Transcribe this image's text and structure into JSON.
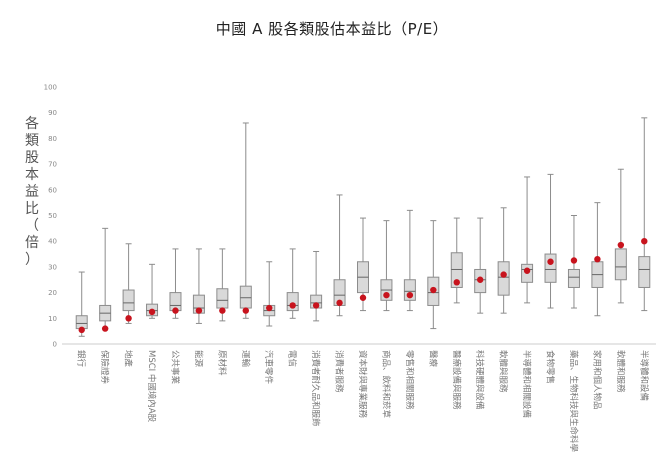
{
  "chart_data": {
    "type": "boxplot",
    "title": "中國 A 股各類股估本益比（P/E）",
    "ylabel": "各類股本益比（倍）",
    "xlabel": "",
    "ylim": [
      0,
      100
    ],
    "yticks": [
      0,
      10,
      20,
      30,
      40,
      50,
      60,
      70,
      80,
      90,
      100
    ],
    "grid": false,
    "legend": "none",
    "colors": {
      "box_fill": "#d9d9d9",
      "box_stroke": "#8c8c8c",
      "whisker": "#8c8c8c",
      "median": "#666666",
      "point": "#c8141e",
      "axis": "#cccccc"
    },
    "series": [
      {
        "category": "銀行",
        "min": 3,
        "q1": 6,
        "median": 8,
        "q3": 11,
        "max": 28,
        "current": 5.5
      },
      {
        "category": "保險證券",
        "min": 6,
        "q1": 9,
        "median": 12,
        "q3": 15,
        "max": 45,
        "current": 6
      },
      {
        "category": "地產",
        "min": 8,
        "q1": 13,
        "median": 16,
        "q3": 21,
        "max": 39,
        "current": 10
      },
      {
        "category": "MSCI 中國境內A股",
        "min": 10,
        "q1": 11,
        "median": 13,
        "q3": 15.5,
        "max": 31,
        "current": 12.5
      },
      {
        "category": "公共事業",
        "min": 10,
        "q1": 13,
        "median": 15,
        "q3": 20,
        "max": 37,
        "current": 13
      },
      {
        "category": "能源",
        "min": 8,
        "q1": 12,
        "median": 14,
        "q3": 19,
        "max": 37,
        "current": 13
      },
      {
        "category": "原材料",
        "min": 9,
        "q1": 14,
        "median": 17,
        "q3": 21.5,
        "max": 37,
        "current": 13
      },
      {
        "category": "運輸",
        "min": 10,
        "q1": 14,
        "median": 18,
        "q3": 22.5,
        "max": 86,
        "current": 13
      },
      {
        "category": "汽車零件",
        "min": 7,
        "q1": 11,
        "median": 13,
        "q3": 15,
        "max": 32,
        "current": 14
      },
      {
        "category": "電信",
        "min": 10,
        "q1": 13,
        "median": 15,
        "q3": 20,
        "max": 37,
        "current": 15
      },
      {
        "category": "消費者耐久品和服飾",
        "min": 9,
        "q1": 14,
        "median": 16,
        "q3": 19,
        "max": 36,
        "current": 15
      },
      {
        "category": "消費者服務",
        "min": 11,
        "q1": 15,
        "median": 19,
        "q3": 25,
        "max": 58,
        "current": 16
      },
      {
        "category": "資本財與專業服務",
        "min": 13,
        "q1": 20,
        "median": 26,
        "q3": 32,
        "max": 49,
        "current": 18
      },
      {
        "category": "商品、飲料和菸草",
        "min": 13,
        "q1": 17,
        "median": 21,
        "q3": 25,
        "max": 48,
        "current": 19
      },
      {
        "category": "零售和相關服務",
        "min": 13,
        "q1": 17,
        "median": 20.5,
        "q3": 25,
        "max": 52,
        "current": 19
      },
      {
        "category": "醫療",
        "min": 6,
        "q1": 15,
        "median": 20,
        "q3": 26,
        "max": 48,
        "current": 21
      },
      {
        "category": "醫療設備與服務",
        "min": 16,
        "q1": 22,
        "median": 29,
        "q3": 35.5,
        "max": 49,
        "current": 24
      },
      {
        "category": "科技硬體與設備",
        "min": 12,
        "q1": 20,
        "median": 25,
        "q3": 29,
        "max": 49,
        "current": 25
      },
      {
        "category": "軟體與服務",
        "min": 12,
        "q1": 19,
        "median": 26,
        "q3": 32,
        "max": 53,
        "current": 27
      },
      {
        "category": "半導體和相關設備",
        "min": 16,
        "q1": 24,
        "median": 29,
        "q3": 31,
        "max": 65,
        "current": 28.5
      },
      {
        "category": "食物零售",
        "min": 14,
        "q1": 24,
        "median": 29,
        "q3": 35,
        "max": 66,
        "current": 32
      },
      {
        "category": "藥品、生物科技與生命科學",
        "min": 14,
        "q1": 22,
        "median": 26,
        "q3": 29,
        "max": 50,
        "current": 32.5
      },
      {
        "category": "家用和個人物品",
        "min": 11,
        "q1": 22,
        "median": 27,
        "q3": 32,
        "max": 55,
        "current": 33
      },
      {
        "category": "軟體和服務",
        "min": 16,
        "q1": 25,
        "median": 30,
        "q3": 37,
        "max": 68,
        "current": 38.5
      },
      {
        "category": "半導體和設備",
        "min": 13,
        "q1": 22,
        "median": 29,
        "q3": 34,
        "max": 88,
        "current": 40
      }
    ]
  }
}
